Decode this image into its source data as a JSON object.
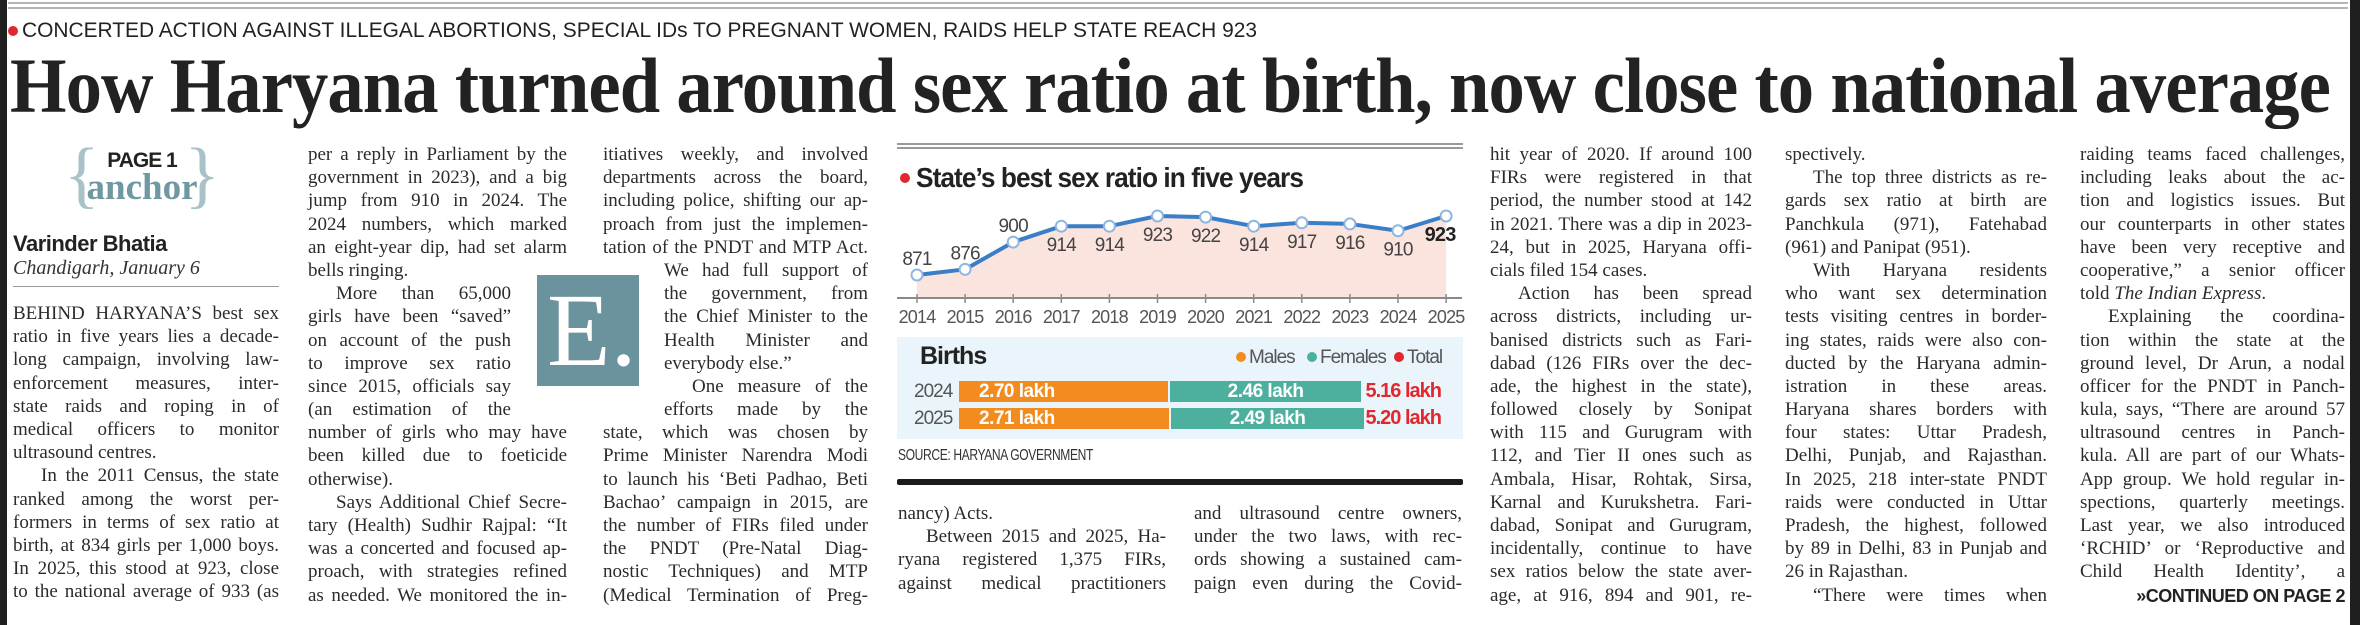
{
  "kicker": "CONCERTED ACTION AGAINST ILLEGAL ABORTIONS, SPECIAL IDs TO PREGNANT WOMEN, RAIDS HELP STATE REACH 923",
  "headline": "How Haryana turned around sex ratio at birth, now close to national average",
  "anchor": {
    "page": "PAGE 1",
    "label": "anchor",
    "brace_open": "{",
    "brace_close": "}"
  },
  "byline": {
    "author": "Varinder Bhatia",
    "dateline": "Chandigarh, January 6"
  },
  "logo_letter": "E.",
  "colors": {
    "accent_red": "#e0282e",
    "anchor_teal": "#6f98a3",
    "logo_teal": "#6b939d",
    "line": "#3b7ec8",
    "area": "#fbe4dd",
    "males": "#f28c1f",
    "females": "#4db09e",
    "total": "#e0282e",
    "births_panel": "#e9f5fb"
  },
  "columns": [
    [
      [
        "BEHIND HARYANA’S best sex",
        "ratio in five years lies a decade-",
        "long campaign, involving law-",
        "enforcement measures, inter-",
        "state raids and roping in of",
        "medical officers to monitor",
        "ultrasound centres."
      ],
      [
        "In the 2011 Census, the state",
        "ranked among the worst per-",
        "formers in terms of sex ratio at",
        "birth, at 834 girls per 1,000 boys.",
        "In 2025, this stood at 923, close",
        "to the national average of 933 (as"
      ]
    ],
    [
      [
        "per a reply in Parliament by the",
        "government in 2023), and a big",
        "jump from 910 in 2024. The",
        "2024 numbers, which marked",
        "an eight-year dip, had set alarm",
        "bells ringing."
      ],
      [
        "More than 65,000",
        "girls have been “saved”",
        "on account of the push",
        "to improve sex ratio",
        "since 2015, officials say",
        "(an estimation of the",
        "number of girls who may have",
        "been killed due to foeticide",
        "otherwise)."
      ],
      [
        "Says Additional Chief Secre-",
        "tary (Health) Sudhir Rajpal: “It",
        "was a concerted and focused ap-",
        "proach, with strategies refined",
        "as needed. We monitored the in-"
      ]
    ],
    [
      [
        "itiatives weekly, and involved",
        "departments across the board,",
        "including police, shifting our ap-",
        "proach from just the implemen-",
        "tation of the PNDT and MTP Act.",
        "We had full support of",
        "the government, from",
        "the Chief Minister to the",
        "Health Minister and",
        "everybody else.”"
      ],
      [
        "One measure of the",
        "efforts made by the",
        "state, which was chosen by",
        "Prime Minister Narendra Modi",
        "to launch his ‘Beti Padhao, Beti",
        "Bachao’ campaign in 2015, are",
        "the number of FIRs filed under",
        "the PNDT (Pre-Natal Diag-",
        "nostic Techniques) and MTP",
        "(Medical Termination of Preg-"
      ]
    ],
    [
      [
        "nancy) Acts."
      ],
      [
        "Between 2015 and 2025, Ha-",
        "ryana registered 1,375 FIRs,",
        "against medical practitioners"
      ]
    ],
    [
      [
        "and ultrasound centre owners,",
        "under the two laws, with rec-",
        "ords showing a sustained cam-",
        "paign even during the Covid-"
      ]
    ],
    [
      [
        "hit year of 2020. If around 100",
        "FIRs were registered in that",
        "period, the number stood at 142",
        "in 2021. There was a dip in 2023-",
        "24, but in 2025, Haryana offi-",
        "cials filed 154 cases."
      ],
      [
        "Action has been spread",
        "across districts, including ur-",
        "banised districts such as Fari-",
        "dabad (126 FIRs over the dec-",
        "ade, the highest in the state),",
        "followed closely by Sonipat",
        "with 115 and Gurugram with",
        "112, and Tier II ones such as",
        "Ambala, Hisar, Rohtak, Sirsa,",
        "Karnal and Kurukshetra. Fari-",
        "dabad, Sonipat and Gurugram,",
        "incidentally, continue to have",
        "sex ratios below the state aver-",
        "age, at 916, 894 and 901, re-"
      ]
    ],
    [
      [
        "spectively."
      ],
      [
        "The top three districts as re-",
        "gards sex ratio at birth are",
        "Panchkula (971), Fatehabad",
        "(961) and Panipat (951)."
      ],
      [
        "With Haryana residents",
        "who want sex determination",
        "tests visiting centres in border-",
        "ing states, raids were also con-",
        "ducted by the Haryana admin-",
        "istration in these areas.",
        "Haryana shares borders with",
        "four states: Uttar Pradesh,",
        "Delhi, Punjab, and Rajasthan.",
        "In 2025, 218 inter-state PNDT",
        "raids were conducted in Uttar",
        "Pradesh, the highest, followed",
        "by 89 in Delhi, 83 in Punjab and",
        "26 in Rajasthan."
      ],
      [
        "“There were times when"
      ]
    ],
    [
      [
        "raiding teams faced challenges,",
        "including leaks about the ac-",
        "tion and logistics issues. But",
        "our counterparts in other states",
        "have been very receptive and",
        "cooperative,” a senior officer",
        [
          "told ",
          {
            "em": "The Indian Express"
          },
          "."
        ]
      ],
      [
        "Explaining the coordina-",
        "tion within the state at the",
        "ground level, Dr Arun, a nodal",
        "officer for the PNDT in Panch-",
        "kula, says, “There are around 57",
        "ultrasound centres in Panch-",
        "kula. All are part of our Whats-",
        "App group. We hold regular in-",
        "spections, quarterly meetings.",
        "Last year, we also introduced",
        "‘RCHID’ or ‘Reproductive and",
        "Child Health Identity’, a"
      ]
    ]
  ],
  "continued": "»CONTINUED ON PAGE 2",
  "chart_data": [
    {
      "type": "line",
      "title": "State’s best sex ratio in five years",
      "categories": [
        "2014",
        "2015",
        "2016",
        "2017",
        "2018",
        "2019",
        "2020",
        "2021",
        "2022",
        "2023",
        "2024",
        "2025"
      ],
      "values": [
        871,
        876,
        900,
        914,
        914,
        923,
        922,
        914,
        917,
        916,
        910,
        923
      ],
      "data_labels": [
        "871",
        "876",
        "900",
        "914",
        "914",
        "923",
        "922",
        "914",
        "917",
        "916",
        "910",
        "923"
      ],
      "highlighted_category": "2025",
      "area_fill": true,
      "grid": false,
      "xlabel": "",
      "ylabel": ""
    },
    {
      "type": "bar",
      "orientation": "horizontal",
      "stacked": true,
      "title": "Births",
      "unit": "lakh",
      "categories": [
        "2024",
        "2025"
      ],
      "series": [
        {
          "name": "Males",
          "values": [
            2.7,
            2.71
          ],
          "labels": [
            "2.70 lakh",
            "2.71 lakh"
          ]
        },
        {
          "name": "Females",
          "values": [
            2.46,
            2.49
          ],
          "labels": [
            "2.46 lakh",
            "2.49 lakh"
          ]
        }
      ],
      "totals": {
        "name": "Total",
        "values": [
          5.16,
          5.2
        ],
        "labels": [
          "5.16 lakh",
          "5.20 lakh"
        ]
      },
      "legend": "top-right",
      "source": "SOURCE: HARYANA GOVERNMENT"
    }
  ]
}
